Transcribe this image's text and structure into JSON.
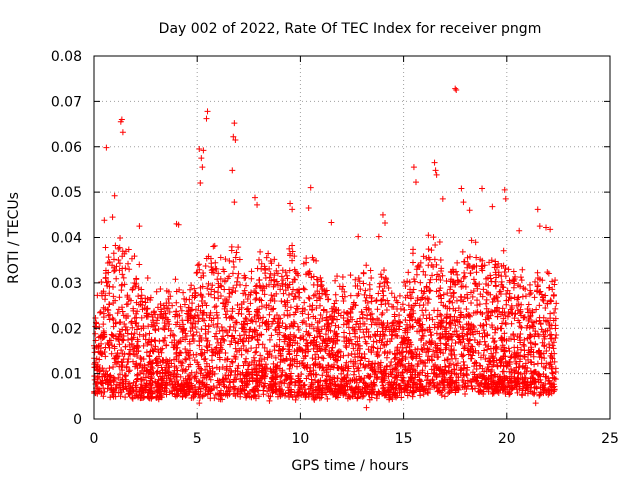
{
  "chart_data": {
    "type": "scatter",
    "title": "Day 002 of 2022, Rate Of TEC Index for receiver pngm",
    "xlabel": "GPS time / hours",
    "ylabel": "ROTI / TECUs",
    "xlim": [
      0,
      25
    ],
    "ylim": [
      0,
      0.08
    ],
    "xticks": [
      "0",
      "5",
      "10",
      "15",
      "20",
      "25"
    ],
    "yticks": [
      "0",
      "0.01",
      "0.02",
      "0.03",
      "0.04",
      "0.05",
      "0.06",
      "0.07",
      "0.08"
    ],
    "grid": true,
    "marker": "+",
    "color": "#ff0000",
    "series": [
      {
        "name": "ROTI",
        "note": "dense scatter of ROTI samples, 0 to 22.4 h; bulk 0.005-0.035 TECUs",
        "points": [
          [
            0.6,
            0.0598
          ],
          [
            1.3,
            0.0655
          ],
          [
            1.35,
            0.066
          ],
          [
            1.4,
            0.0632
          ],
          [
            1.0,
            0.0492
          ],
          [
            0.9,
            0.0445
          ],
          [
            0.5,
            0.0438
          ],
          [
            2.2,
            0.0425
          ],
          [
            4.0,
            0.043
          ],
          [
            4.1,
            0.0428
          ],
          [
            5.1,
            0.0595
          ],
          [
            5.2,
            0.0575
          ],
          [
            5.3,
            0.0592
          ],
          [
            5.25,
            0.0555
          ],
          [
            5.15,
            0.052
          ],
          [
            5.5,
            0.0678
          ],
          [
            5.45,
            0.0662
          ],
          [
            6.8,
            0.0652
          ],
          [
            6.75,
            0.0622
          ],
          [
            6.85,
            0.0615
          ],
          [
            6.7,
            0.0548
          ],
          [
            6.8,
            0.0478
          ],
          [
            7.8,
            0.0488
          ],
          [
            7.9,
            0.0472
          ],
          [
            9.5,
            0.0475
          ],
          [
            9.6,
            0.0462
          ],
          [
            10.5,
            0.051
          ],
          [
            10.4,
            0.0465
          ],
          [
            11.5,
            0.0433
          ],
          [
            12.8,
            0.0402
          ],
          [
            13.8,
            0.0402
          ],
          [
            14.1,
            0.0432
          ],
          [
            14.0,
            0.045
          ],
          [
            15.5,
            0.0555
          ],
          [
            15.6,
            0.0522
          ],
          [
            16.2,
            0.0405
          ],
          [
            16.5,
            0.0565
          ],
          [
            16.55,
            0.0548
          ],
          [
            16.6,
            0.0538
          ],
          [
            16.9,
            0.0485
          ],
          [
            17.5,
            0.0728
          ],
          [
            17.55,
            0.0725
          ],
          [
            17.8,
            0.0508
          ],
          [
            17.9,
            0.0478
          ],
          [
            18.2,
            0.046
          ],
          [
            18.8,
            0.0508
          ],
          [
            19.3,
            0.0468
          ],
          [
            19.9,
            0.0505
          ],
          [
            19.95,
            0.0485
          ],
          [
            20.6,
            0.0415
          ],
          [
            21.5,
            0.0462
          ],
          [
            21.6,
            0.0425
          ],
          [
            21.9,
            0.0422
          ],
          [
            22.1,
            0.0418
          ],
          [
            13.2,
            0.0025
          ],
          [
            5.1,
            0.0035
          ],
          [
            8.5,
            0.004
          ],
          [
            12.3,
            0.0045
          ],
          [
            21.4,
            0.0035
          ],
          [
            17.0,
            0.005
          ]
        ],
        "envelope": [
          [
            0.0,
            0.022
          ],
          [
            0.5,
            0.036
          ],
          [
            1.0,
            0.041
          ],
          [
            1.5,
            0.038
          ],
          [
            2.0,
            0.034
          ],
          [
            2.5,
            0.029
          ],
          [
            3.0,
            0.027
          ],
          [
            3.5,
            0.028
          ],
          [
            4.0,
            0.029
          ],
          [
            4.5,
            0.027
          ],
          [
            5.0,
            0.034
          ],
          [
            5.5,
            0.04
          ],
          [
            6.0,
            0.033
          ],
          [
            6.5,
            0.038
          ],
          [
            7.0,
            0.036
          ],
          [
            7.5,
            0.032
          ],
          [
            8.0,
            0.035
          ],
          [
            8.5,
            0.036
          ],
          [
            9.0,
            0.032
          ],
          [
            9.5,
            0.037
          ],
          [
            10.0,
            0.034
          ],
          [
            10.5,
            0.038
          ],
          [
            11.0,
            0.033
          ],
          [
            11.5,
            0.031
          ],
          [
            12.0,
            0.032
          ],
          [
            12.5,
            0.03
          ],
          [
            13.0,
            0.033
          ],
          [
            13.5,
            0.032
          ],
          [
            14.0,
            0.038
          ],
          [
            14.5,
            0.027
          ],
          [
            15.0,
            0.029
          ],
          [
            15.5,
            0.036
          ],
          [
            16.0,
            0.034
          ],
          [
            16.5,
            0.04
          ],
          [
            17.0,
            0.031
          ],
          [
            17.5,
            0.036
          ],
          [
            18.0,
            0.041
          ],
          [
            18.5,
            0.037
          ],
          [
            19.0,
            0.033
          ],
          [
            19.5,
            0.035
          ],
          [
            20.0,
            0.037
          ],
          [
            20.5,
            0.034
          ],
          [
            21.0,
            0.028
          ],
          [
            21.5,
            0.034
          ],
          [
            22.0,
            0.032
          ],
          [
            22.4,
            0.03
          ]
        ],
        "floor": [
          [
            0.0,
            0.007
          ],
          [
            2.0,
            0.006
          ],
          [
            4.0,
            0.0065
          ],
          [
            6.0,
            0.006
          ],
          [
            8.0,
            0.0065
          ],
          [
            10.0,
            0.006
          ],
          [
            12.0,
            0.0065
          ],
          [
            14.0,
            0.006
          ],
          [
            16.0,
            0.007
          ],
          [
            18.0,
            0.0075
          ],
          [
            20.0,
            0.007
          ],
          [
            22.4,
            0.007
          ]
        ]
      }
    ]
  }
}
